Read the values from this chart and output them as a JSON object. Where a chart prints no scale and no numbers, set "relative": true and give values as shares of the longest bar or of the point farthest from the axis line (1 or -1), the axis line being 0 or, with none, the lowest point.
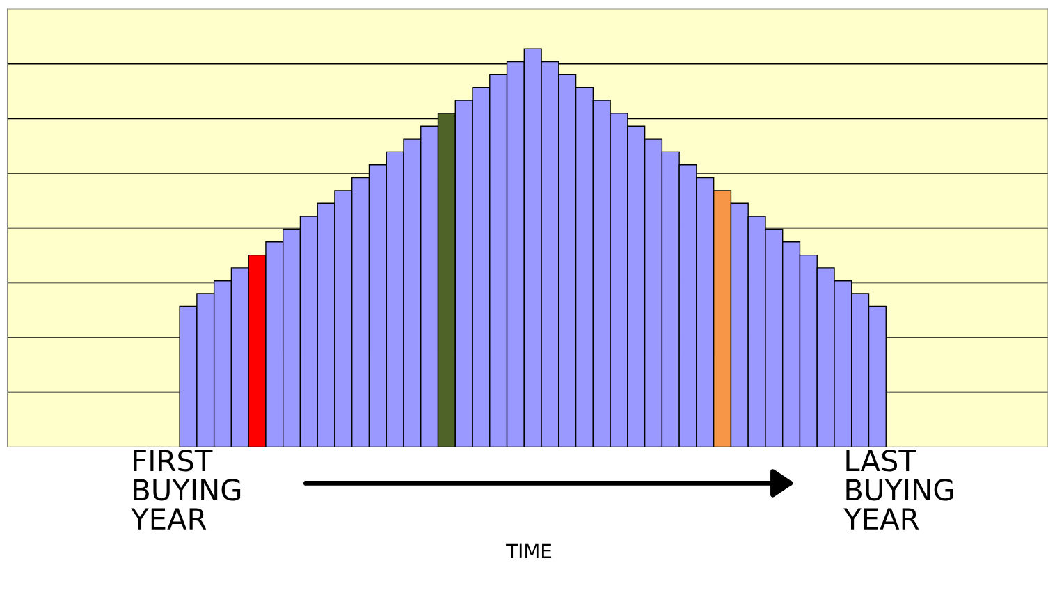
{
  "chart_data": {
    "type": "bar",
    "relative": true,
    "grid": "y",
    "categories": [
      null,
      null,
      null,
      null,
      null,
      null,
      null,
      null,
      null,
      null,
      null,
      null,
      null,
      null,
      null,
      null,
      null,
      null,
      null,
      null,
      null,
      null,
      null,
      null,
      null,
      null,
      null,
      null,
      null,
      null,
      null,
      null,
      null,
      null,
      null,
      null,
      null,
      null,
      null,
      null,
      null
    ],
    "values": [
      0.353,
      0.385,
      0.417,
      0.45,
      0.482,
      0.515,
      0.547,
      0.579,
      0.612,
      0.644,
      0.676,
      0.709,
      0.741,
      0.773,
      0.806,
      0.838,
      0.871,
      0.903,
      0.935,
      0.968,
      1,
      0.968,
      0.935,
      0.903,
      0.871,
      0.838,
      0.806,
      0.773,
      0.741,
      0.709,
      0.676,
      0.644,
      0.612,
      0.579,
      0.547,
      0.515,
      0.482,
      0.45,
      0.417,
      0.385,
      0.353
    ],
    "colors": [
      "#9999ff",
      "#9999ff",
      "#9999ff",
      "#9999ff",
      "#ff0000",
      "#9999ff",
      "#9999ff",
      "#9999ff",
      "#9999ff",
      "#9999ff",
      "#9999ff",
      "#9999ff",
      "#9999ff",
      "#9999ff",
      "#9999ff",
      "#4f6228",
      "#9999ff",
      "#9999ff",
      "#9999ff",
      "#9999ff",
      "#9999ff",
      "#9999ff",
      "#9999ff",
      "#9999ff",
      "#9999ff",
      "#9999ff",
      "#9999ff",
      "#9999ff",
      "#9999ff",
      "#9999ff",
      "#9999ff",
      "#f79646",
      "#9999ff",
      "#9999ff",
      "#9999ff",
      "#9999ff",
      "#9999ff",
      "#9999ff",
      "#9999ff",
      "#9999ff",
      "#9999ff"
    ],
    "annotations": [
      "FIRST\nBUYING\nYEAR",
      "TIME",
      "LAST\nBUYING\nYEAR"
    ]
  }
}
